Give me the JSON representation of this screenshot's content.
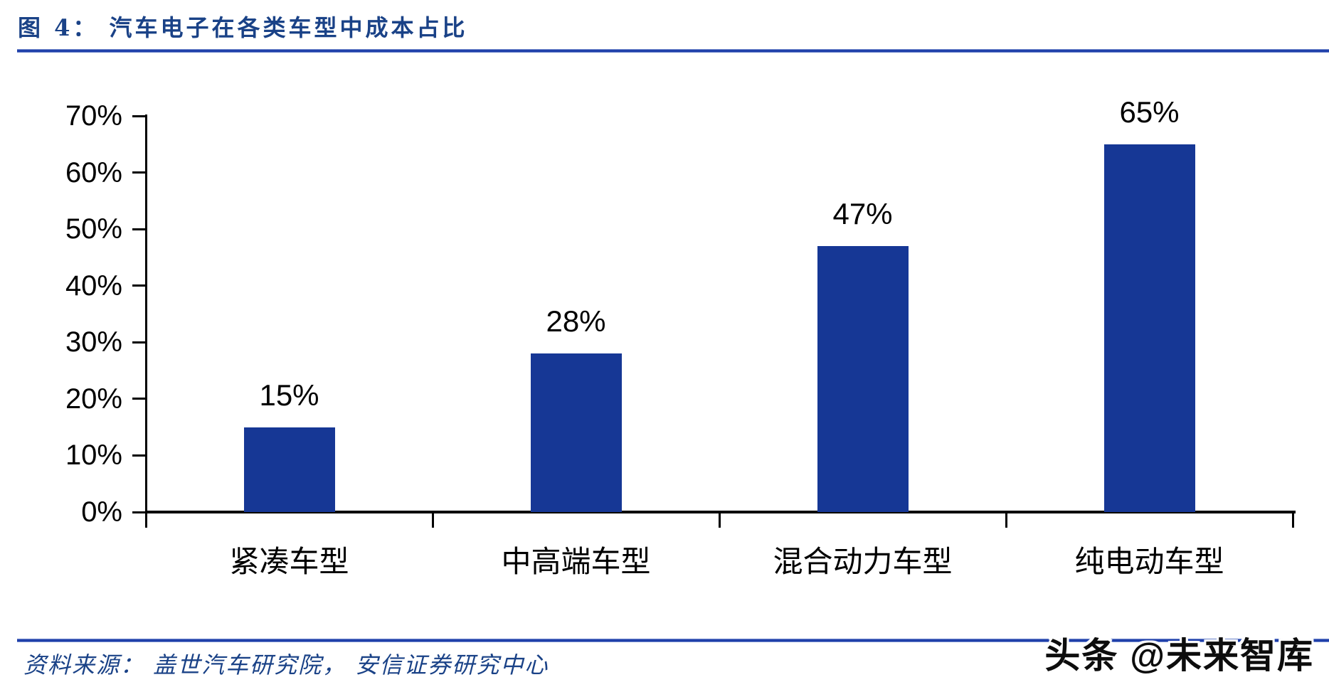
{
  "title": "图 4：  汽车电子在各类车型中成本占比",
  "source": "资料来源： 盖世汽车研究院， 安信证券研究中心",
  "watermark": "头条 @未来智库",
  "colors": {
    "bar": "#163795",
    "heading_navy": "#1a4287",
    "rule_blue": "#1c3ca8",
    "axis_black": "#000000"
  },
  "chart_data": {
    "type": "bar",
    "title": "汽车电子在各类车型中成本占比",
    "categories": [
      "紧凑车型",
      "中高端车型",
      "混合动力车型",
      "纯电动车型"
    ],
    "values": [
      15,
      28,
      47,
      65
    ],
    "data_labels": [
      "15%",
      "28%",
      "47%",
      "65%"
    ],
    "xlabel": "",
    "ylabel": "",
    "ylim": [
      0,
      70
    ],
    "ytick_step": 10,
    "ytick_labels": [
      "0%",
      "10%",
      "20%",
      "30%",
      "40%",
      "50%",
      "60%",
      "70%"
    ],
    "grid": false,
    "legend": "none",
    "bar_color": "#163795"
  }
}
